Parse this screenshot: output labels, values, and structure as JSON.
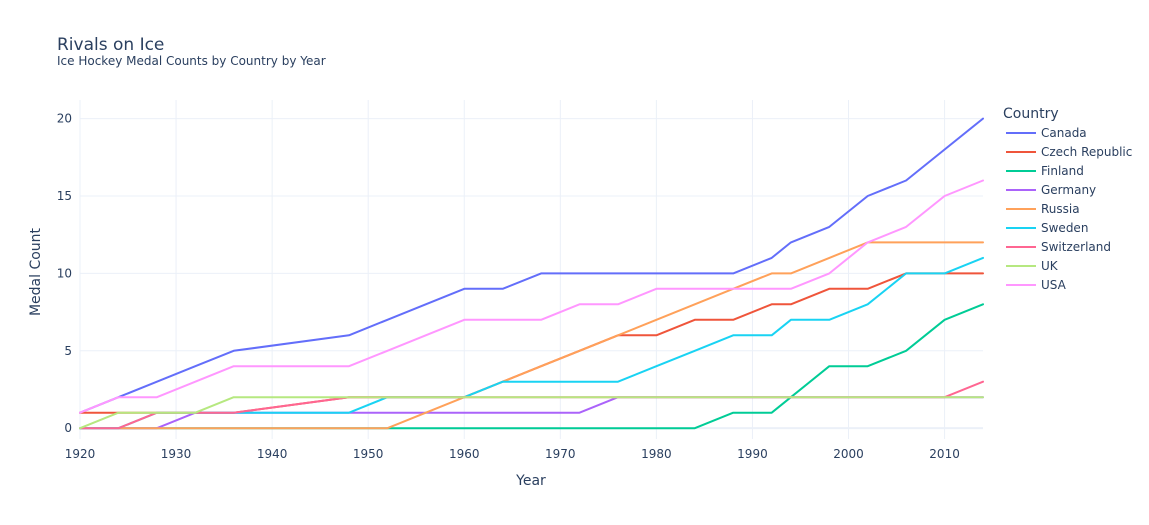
{
  "chart_data": {
    "type": "line",
    "title": "Rivals on Ice",
    "subtitle": "Ice Hockey Medal Counts by Country by Year",
    "xlabel": "Year",
    "ylabel": "Medal Count",
    "xlim": [
      1920,
      2014
    ],
    "ylim": [
      -0.7,
      21.2
    ],
    "xticks": [
      1920,
      1930,
      1940,
      1950,
      1960,
      1970,
      1980,
      1990,
      2000,
      2010
    ],
    "yticks": [
      0,
      5,
      10,
      15,
      20
    ],
    "grid": true,
    "legend_title": "Country",
    "legend_position": "right",
    "series": [
      {
        "name": "Canada",
        "color": "#636efa",
        "x": [
          1920,
          1924,
          1928,
          1932,
          1936,
          1948,
          1952,
          1956,
          1960,
          1964,
          1968,
          1972,
          1976,
          1980,
          1984,
          1988,
          1992,
          1994,
          1998,
          2002,
          2006,
          2010,
          2014
        ],
        "y": [
          1,
          2,
          3,
          4,
          5,
          6,
          7,
          8,
          9,
          9,
          10,
          10,
          10,
          10,
          10,
          10,
          11,
          12,
          13,
          15,
          16,
          18,
          20
        ]
      },
      {
        "name": "Czech Republic",
        "color": "#ef553b",
        "x": [
          1920,
          1924,
          1936,
          1948,
          1952,
          1956,
          1960,
          1964,
          1968,
          1972,
          1976,
          1980,
          1984,
          1988,
          1992,
          1994,
          1998,
          2002,
          2006,
          2010,
          2014
        ],
        "y": [
          1,
          1,
          1,
          2,
          2,
          2,
          2,
          3,
          4,
          5,
          6,
          6,
          7,
          7,
          8,
          8,
          9,
          9,
          10,
          10,
          10
        ]
      },
      {
        "name": "Finland",
        "color": "#00cc96",
        "x": [
          1920,
          1984,
          1988,
          1992,
          1994,
          1998,
          2002,
          2006,
          2010,
          2014
        ],
        "y": [
          0,
          0,
          1,
          1,
          2,
          4,
          4,
          5,
          7,
          8
        ]
      },
      {
        "name": "Germany",
        "color": "#ab63fa",
        "x": [
          1920,
          1928,
          1932,
          1936,
          1948,
          1972,
          1976,
          1980,
          1984,
          1988,
          1992,
          1994,
          1998,
          2002,
          2006,
          2010,
          2014
        ],
        "y": [
          0,
          0,
          1,
          1,
          1,
          1,
          2,
          2,
          2,
          2,
          2,
          2,
          2,
          2,
          2,
          2,
          2
        ]
      },
      {
        "name": "Russia",
        "color": "#ffa15a",
        "x": [
          1920,
          1952,
          1956,
          1960,
          1964,
          1968,
          1972,
          1976,
          1980,
          1984,
          1988,
          1992,
          1994,
          1998,
          2002,
          2006,
          2010,
          2014
        ],
        "y": [
          0,
          0,
          1,
          2,
          3,
          4,
          5,
          6,
          7,
          8,
          9,
          10,
          10,
          11,
          12,
          12,
          12,
          12
        ]
      },
      {
        "name": "Sweden",
        "color": "#19d3f3",
        "x": [
          1920,
          1924,
          1928,
          1936,
          1948,
          1952,
          1956,
          1960,
          1964,
          1968,
          1972,
          1976,
          1980,
          1984,
          1988,
          1992,
          1994,
          1998,
          2002,
          2006,
          2010,
          2014
        ],
        "y": [
          0,
          0,
          1,
          1,
          1,
          2,
          2,
          2,
          3,
          3,
          3,
          3,
          4,
          5,
          6,
          6,
          7,
          7,
          8,
          10,
          10,
          11
        ]
      },
      {
        "name": "Switzerland",
        "color": "#ff6692",
        "x": [
          1920,
          1924,
          1928,
          1936,
          1948,
          1952,
          2010,
          2014
        ],
        "y": [
          0,
          0,
          1,
          1,
          2,
          2,
          2,
          3
        ]
      },
      {
        "name": "UK",
        "color": "#b6e880",
        "x": [
          1920,
          1924,
          1932,
          1936,
          2014
        ],
        "y": [
          0,
          1,
          1,
          2,
          2
        ]
      },
      {
        "name": "USA",
        "color": "#ff97ff",
        "x": [
          1920,
          1924,
          1928,
          1932,
          1936,
          1948,
          1952,
          1956,
          1960,
          1964,
          1968,
          1972,
          1976,
          1980,
          1984,
          1988,
          1992,
          1994,
          1998,
          2002,
          2006,
          2010,
          2014
        ],
        "y": [
          1,
          2,
          2,
          3,
          4,
          4,
          5,
          6,
          7,
          7,
          7,
          8,
          8,
          9,
          9,
          9,
          9,
          9,
          10,
          12,
          13,
          15,
          16
        ]
      }
    ]
  }
}
